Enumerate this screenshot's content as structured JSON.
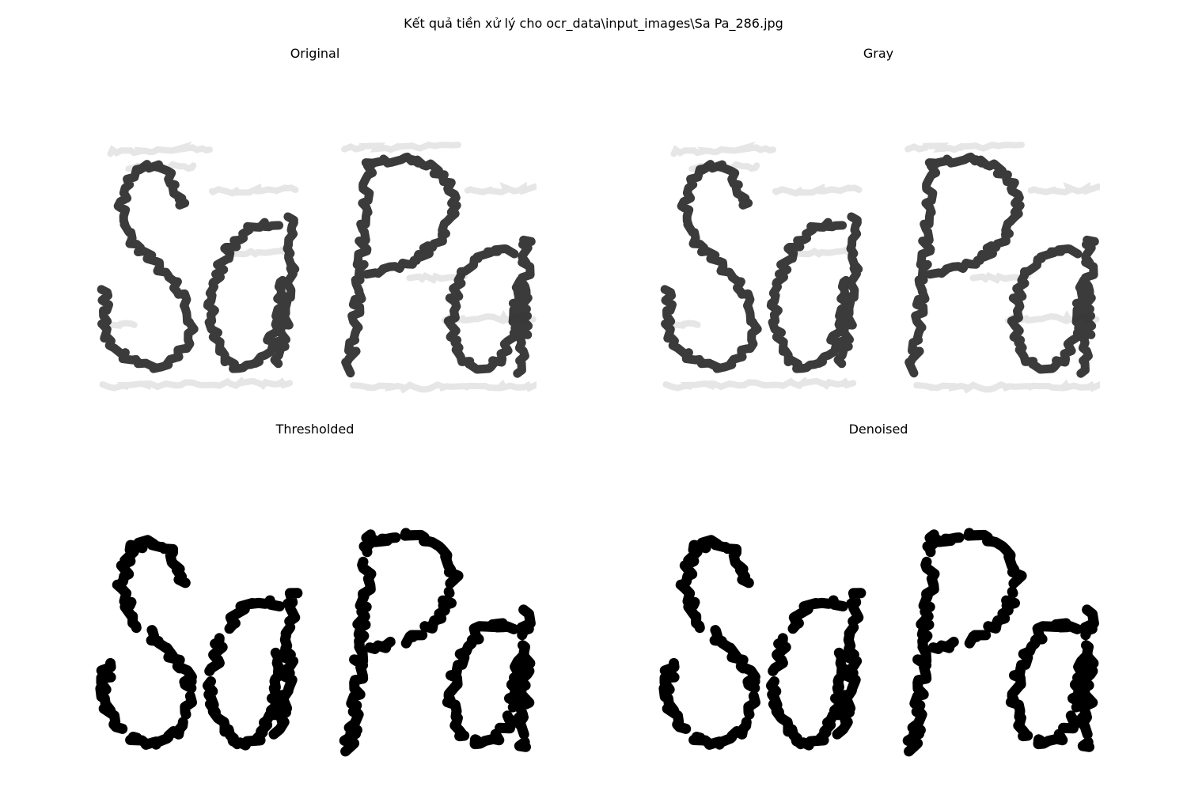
{
  "figure": {
    "title": "Kết quả tiền xử lý cho ocr_data\\input_images\\Sa Pa_286.jpg"
  },
  "panels": [
    {
      "id": "original",
      "title": "Original",
      "style": "soft"
    },
    {
      "id": "gray",
      "title": "Gray",
      "style": "soft"
    },
    {
      "id": "threshold",
      "title": "Thresholded",
      "style": "binary"
    },
    {
      "id": "denoised",
      "title": "Denoised",
      "style": "binary"
    }
  ],
  "image": {
    "handwritten_text": "Sa Pa",
    "background_color": "#ffffff",
    "ink_color_soft": "#2a2a2a",
    "ink_color_binary": "#000000",
    "ghost_color": "#e6e6e6"
  }
}
